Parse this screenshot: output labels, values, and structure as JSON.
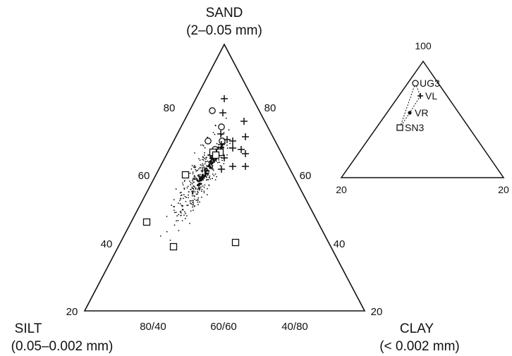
{
  "main_triangle": {
    "apex_label": "SAND",
    "apex_sublabel": "(2–0.05 mm)",
    "left_label": "SILT",
    "left_sublabel": "(0.05–0.002 mm)",
    "right_label": "CLAY",
    "right_sublabel": "(< 0.002 mm)",
    "left_ticks": [
      "80",
      "60",
      "40",
      "20"
    ],
    "right_ticks": [
      "80",
      "60",
      "40",
      "20"
    ],
    "bottom_ticks": [
      "80/40",
      "60/60",
      "40/80"
    ]
  },
  "inset_triangle": {
    "top_label": "100",
    "left_label": "20",
    "right_label": "20",
    "points": [
      {
        "label": "UG3",
        "symbol": "circle"
      },
      {
        "label": "VL",
        "symbol": "plus"
      },
      {
        "label": "VR",
        "symbol": "dot"
      },
      {
        "label": "SN3",
        "symbol": "square"
      }
    ]
  },
  "chart_data": {
    "type": "scatter",
    "series": [
      {
        "symbol": "circle",
        "points": [
          [
            301,
            157
          ],
          [
            314,
            180
          ],
          [
            315,
            200
          ],
          [
            295,
            200
          ],
          [
            305,
            212
          ]
        ]
      },
      {
        "symbol": "plus",
        "points": [
          [
            318,
            140
          ],
          [
            316,
            160
          ],
          [
            346,
            172
          ],
          [
            313,
            190
          ],
          [
            330,
            200
          ],
          [
            348,
            194
          ],
          [
            314,
            205
          ],
          [
            330,
            210
          ],
          [
            342,
            212
          ],
          [
            348,
            218
          ],
          [
            318,
            224
          ],
          [
            300,
            230
          ],
          [
            330,
            236
          ],
          [
            314,
            240
          ],
          [
            348,
            236
          ],
          [
            302,
            222
          ],
          [
            322,
            198
          ]
        ]
      },
      {
        "symbol": "square",
        "points": [
          [
            263,
            248
          ],
          [
            208,
            315
          ],
          [
            246,
            350
          ],
          [
            334,
            344
          ],
          [
            302,
            216
          ],
          [
            312,
            216
          ],
          [
            306,
            220
          ]
        ]
      }
    ],
    "dot_cloud_seed": 7,
    "colors": {
      "ink": "#111111"
    }
  }
}
